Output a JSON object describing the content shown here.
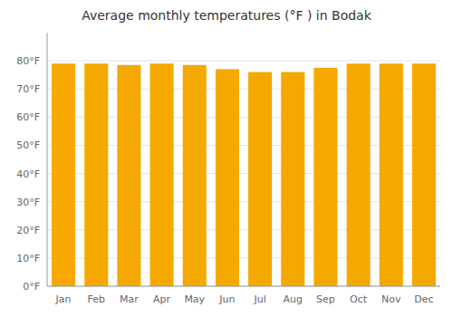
{
  "chart_data": {
    "type": "bar",
    "title": "Average monthly temperatures (°F ) in Bodak",
    "categories": [
      "Jan",
      "Feb",
      "Mar",
      "Apr",
      "May",
      "Jun",
      "Jul",
      "Aug",
      "Sep",
      "Oct",
      "Nov",
      "Dec"
    ],
    "values": [
      79,
      79,
      78.5,
      79,
      78.5,
      77,
      76,
      76,
      77.5,
      79,
      79,
      79
    ],
    "color": "#F5A800",
    "ylim": [
      0,
      90
    ],
    "yticks": [
      {
        "value": 0,
        "label": "0°F"
      },
      {
        "value": 10,
        "label": "10°F"
      },
      {
        "value": 20,
        "label": "20°F"
      },
      {
        "value": 30,
        "label": "30°F"
      },
      {
        "value": 40,
        "label": "40°F"
      },
      {
        "value": 50,
        "label": "50°F"
      },
      {
        "value": 60,
        "label": "60°F"
      },
      {
        "value": 70,
        "label": "70°F"
      },
      {
        "value": 80,
        "label": "80°F"
      }
    ],
    "grid": true
  }
}
